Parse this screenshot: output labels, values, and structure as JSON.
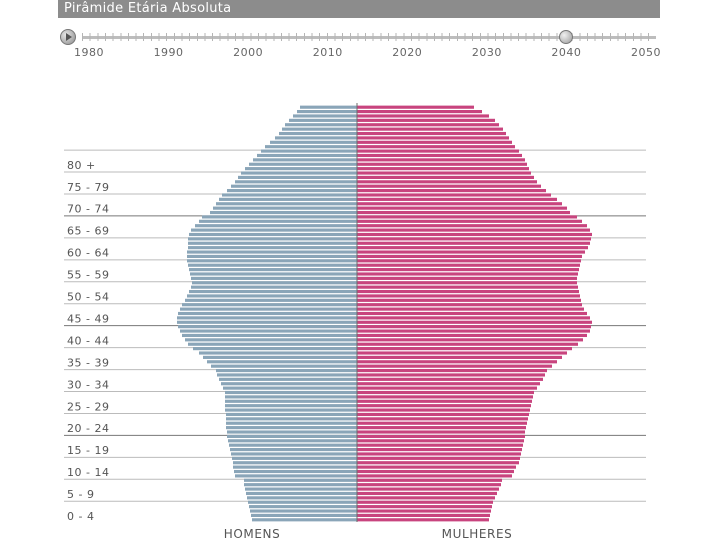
{
  "title": "Pirâmide Etária Absoluta",
  "timeline": {
    "years": [
      "1980",
      "1990",
      "2000",
      "2010",
      "2020",
      "2030",
      "2040",
      "2050"
    ],
    "selected_year": 2040,
    "min_year": 1980,
    "max_year": 2050
  },
  "chart_data": {
    "type": "bar",
    "subtype": "population-pyramid",
    "title": "Pirâmide Etária Absoluta",
    "age_groups": [
      "0 - 4",
      "5 - 9",
      "10 - 14",
      "15 - 19",
      "20 - 24",
      "25 - 29",
      "30 - 34",
      "35 - 39",
      "40 - 44",
      "45 - 49",
      "50 - 54",
      "55 - 59",
      "60 - 64",
      "65 - 69",
      "70 - 74",
      "75 - 79",
      "80 +"
    ],
    "bars_per_group": 5,
    "series": [
      {
        "name": "HOMENS",
        "color": "#8aa5b8",
        "values": [
          105,
          106,
          107,
          108,
          109,
          110,
          111,
          112,
          113,
          113,
          122,
          123,
          124,
          124,
          125,
          126,
          127,
          128,
          129,
          130,
          130,
          131,
          131,
          131,
          131,
          132,
          132,
          132,
          132,
          132,
          134,
          136,
          138,
          140,
          141,
          146,
          150,
          154,
          158,
          164,
          169,
          172,
          175,
          177,
          179,
          180,
          180,
          179,
          177,
          175,
          172,
          170,
          168,
          166,
          165,
          166,
          167,
          168,
          169,
          170,
          170,
          170,
          169,
          169,
          169,
          168,
          166,
          162,
          158,
          155,
          147,
          144,
          141,
          138,
          135,
          130,
          126,
          122,
          119,
          116,
          112,
          108,
          104,
          100,
          96,
          92,
          87,
          82,
          78,
          75,
          72,
          68,
          64,
          60,
          57
        ]
      },
      {
        "name": "MULHERES",
        "color": "#c8447e",
        "values": [
          132,
          133,
          134,
          135,
          136,
          138,
          140,
          142,
          144,
          145,
          155,
          157,
          159,
          162,
          163,
          164,
          165,
          166,
          167,
          168,
          168,
          169,
          170,
          171,
          172,
          173,
          174,
          175,
          176,
          177,
          180,
          183,
          186,
          188,
          190,
          195,
          200,
          205,
          210,
          215,
          221,
          226,
          230,
          233,
          234,
          235,
          233,
          230,
          227,
          225,
          224,
          223,
          222,
          221,
          220,
          220,
          221,
          222,
          223,
          224,
          225,
          228,
          231,
          233,
          234,
          235,
          233,
          230,
          225,
          220,
          213,
          210,
          205,
          200,
          194,
          189,
          184,
          180,
          177,
          174,
          172,
          170,
          168,
          165,
          162,
          158,
          155,
          152,
          149,
          146,
          142,
          138,
          132,
          125,
          117
        ]
      }
    ],
    "xlabel_left": "HOMENS",
    "xlabel_right": "MULHERES",
    "legend": "none",
    "grid": true
  }
}
